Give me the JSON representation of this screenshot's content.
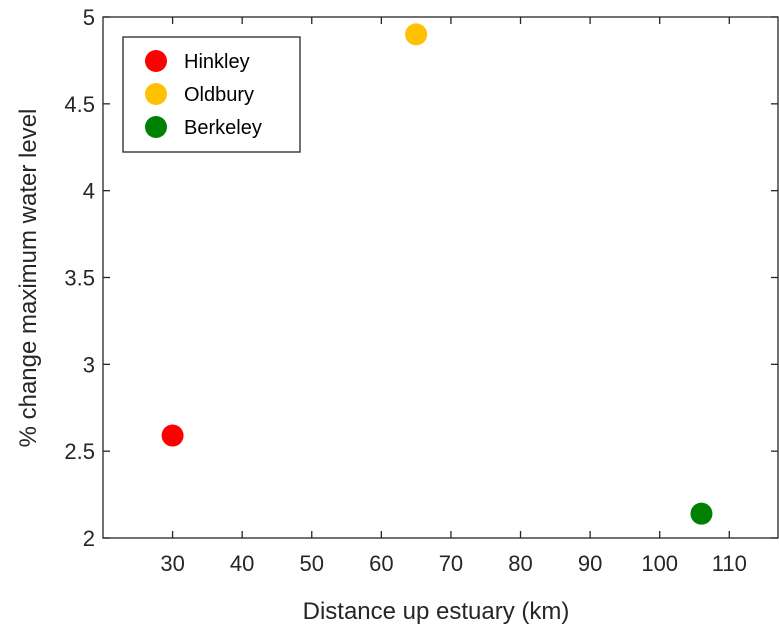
{
  "chart_data": {
    "type": "scatter",
    "xlabel": "Distance up estuary (km)",
    "ylabel": "% change maximum water level",
    "xlim": [
      20,
      117
    ],
    "ylim": [
      2,
      5
    ],
    "xticks": [
      30,
      40,
      50,
      60,
      70,
      80,
      90,
      100,
      110
    ],
    "yticks": [
      2,
      2.5,
      3,
      3.5,
      4,
      4.5,
      5
    ],
    "ytick_labels": [
      "2",
      "2.5",
      "3",
      "3.5",
      "4",
      "4.5",
      "5"
    ],
    "grid": false,
    "legend_position": "top-left",
    "series": [
      {
        "name": "Hinkley",
        "color": "#ff0000",
        "points": [
          {
            "x": 30,
            "y": 2.59
          }
        ]
      },
      {
        "name": "Oldbury",
        "color": "#ffc000",
        "points": [
          {
            "x": 65,
            "y": 4.9
          }
        ]
      },
      {
        "name": "Berkeley",
        "color": "#008000",
        "points": [
          {
            "x": 106,
            "y": 2.14
          }
        ]
      }
    ]
  }
}
